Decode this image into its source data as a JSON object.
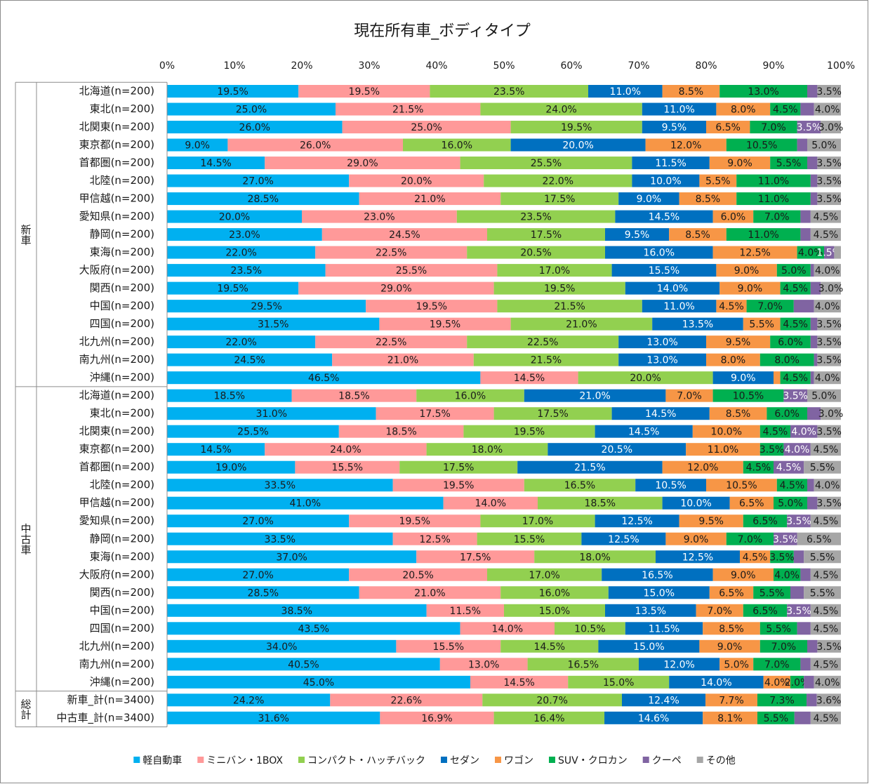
{
  "chart_data": {
    "type": "stacked_bar_horizontal",
    "title": "現在所有車_ボディタイプ",
    "groups": [
      {
        "name": "新車",
        "categories": [
          "北海道(n=200)",
          "東北(n=200)",
          "北関東(n=200)",
          "東京都(n=200)",
          "首都圏(n=200)",
          "北陸(n=200)",
          "甲信越(n=200)",
          "愛知県(n=200)",
          "静岡(n=200)",
          "東海(n=200)",
          "大阪府(n=200)",
          "関西(n=200)",
          "中国(n=200)",
          "四国(n=200)",
          "北九州(n=200)",
          "南九州(n=200)",
          "沖縄(n=200)"
        ]
      },
      {
        "name": "中古車",
        "categories": [
          "北海道(n=200)",
          "東北(n=200)",
          "北関東(n=200)",
          "東京都(n=200)",
          "首都圏(n=200)",
          "北陸(n=200)",
          "甲信越(n=200)",
          "愛知県(n=200)",
          "静岡(n=200)",
          "東海(n=200)",
          "大阪府(n=200)",
          "関西(n=200)",
          "中国(n=200)",
          "四国(n=200)",
          "北九州(n=200)",
          "南九州(n=200)",
          "沖縄(n=200)"
        ]
      },
      {
        "name": "総計",
        "categories": [
          "新車_計(n=3400)",
          "中古車_計(n=3400)"
        ]
      }
    ],
    "xlim": [
      0,
      100
    ],
    "xticks": [
      {
        "value": 0,
        "label": "0%"
      },
      {
        "value": 10,
        "label": "10%"
      },
      {
        "value": 20,
        "label": "20%"
      },
      {
        "value": 30,
        "label": "30%"
      },
      {
        "value": 40,
        "label": "40%"
      },
      {
        "value": 50,
        "label": "50%"
      },
      {
        "value": 60,
        "label": "60%"
      },
      {
        "value": 70,
        "label": "70%"
      },
      {
        "value": 80,
        "label": "80%"
      },
      {
        "value": 90,
        "label": "90%"
      },
      {
        "value": 100,
        "label": "100%"
      }
    ],
    "legend": "bottom",
    "series": [
      {
        "name": "軽自動車",
        "color": "#00b0f0",
        "label_color": "#1a1a1a",
        "values": [
          19.5,
          25.0,
          26.0,
          9.0,
          14.5,
          27.0,
          28.5,
          20.0,
          23.0,
          22.0,
          23.5,
          19.5,
          29.5,
          31.5,
          22.0,
          24.5,
          46.5,
          18.5,
          31.0,
          25.5,
          14.5,
          19.0,
          33.5,
          41.0,
          27.0,
          33.5,
          37.0,
          27.0,
          28.5,
          38.5,
          43.5,
          34.0,
          40.5,
          45.0,
          24.2,
          31.6
        ],
        "value_labels": [
          "19.5%",
          "25.0%",
          "26.0%",
          "9.0%",
          "14.5%",
          "27.0%",
          "28.5%",
          "20.0%",
          "23.0%",
          "22.0%",
          "23.5%",
          "19.5%",
          "29.5%",
          "31.5%",
          "22.0%",
          "24.5%",
          "46.5%",
          "18.5%",
          "31.0%",
          "25.5%",
          "14.5%",
          "19.0%",
          "33.5%",
          "41.0%",
          "27.0%",
          "33.5%",
          "37.0%",
          "27.0%",
          "28.5%",
          "38.5%",
          "43.5%",
          "34.0%",
          "40.5%",
          "45.0%",
          "24.2%",
          "31.6%"
        ]
      },
      {
        "name": "ミニバン・1BOX",
        "color": "#ff9999",
        "label_color": "#1a1a1a",
        "values": [
          19.5,
          21.5,
          25.0,
          26.0,
          29.0,
          20.0,
          21.0,
          23.0,
          24.5,
          22.5,
          25.5,
          29.0,
          19.5,
          19.5,
          22.5,
          21.0,
          14.5,
          18.5,
          17.5,
          18.5,
          24.0,
          15.5,
          19.5,
          14.0,
          19.5,
          12.5,
          17.5,
          20.5,
          21.0,
          11.5,
          14.0,
          15.5,
          13.0,
          14.5,
          22.6,
          16.9
        ],
        "value_labels": [
          "19.5%",
          "21.5%",
          "25.0%",
          "26.0%",
          "29.0%",
          "20.0%",
          "21.0%",
          "23.0%",
          "24.5%",
          "22.5%",
          "25.5%",
          "29.0%",
          "19.5%",
          "19.5%",
          "22.5%",
          "21.0%",
          "14.5%",
          "18.5%",
          "17.5%",
          "18.5%",
          "24.0%",
          "15.5%",
          "19.5%",
          "14.0%",
          "19.5%",
          "12.5%",
          "17.5%",
          "20.5%",
          "21.0%",
          "11.5%",
          "14.0%",
          "15.5%",
          "13.0%",
          "14.5%",
          "22.6%",
          "16.9%"
        ]
      },
      {
        "name": "コンパクト・ハッチバック",
        "color": "#92d050",
        "label_color": "#1a1a1a",
        "values": [
          23.5,
          24.0,
          19.5,
          16.0,
          25.5,
          22.0,
          17.5,
          23.5,
          17.5,
          20.5,
          17.0,
          19.5,
          21.5,
          21.0,
          22.5,
          21.5,
          20.0,
          16.0,
          17.5,
          19.5,
          18.0,
          17.5,
          16.5,
          18.5,
          17.0,
          15.5,
          18.0,
          17.0,
          16.0,
          15.0,
          10.5,
          14.5,
          16.5,
          15.0,
          20.7,
          16.4
        ],
        "value_labels": [
          "23.5%",
          "24.0%",
          "19.5%",
          "16.0%",
          "25.5%",
          "22.0%",
          "17.5%",
          "23.5%",
          "17.5%",
          "20.5%",
          "17.0%",
          "19.5%",
          "21.5%",
          "21.0%",
          "22.5%",
          "21.5%",
          "20.0%",
          "16.0%",
          "17.5%",
          "19.5%",
          "18.0%",
          "17.5%",
          "16.5%",
          "18.5%",
          "17.0%",
          "15.5%",
          "18.0%",
          "17.0%",
          "16.0%",
          "15.0%",
          "10.5%",
          "14.5%",
          "16.5%",
          "15.0%",
          "20.7%",
          "16.4%"
        ]
      },
      {
        "name": "セダン",
        "color": "#0070c0",
        "label_color": "#ffffff",
        "values": [
          11.0,
          11.0,
          9.5,
          20.0,
          11.5,
          10.0,
          9.0,
          14.5,
          9.5,
          16.0,
          15.5,
          14.0,
          11.0,
          13.5,
          13.0,
          13.0,
          9.0,
          21.0,
          14.5,
          14.5,
          20.5,
          21.5,
          10.5,
          10.0,
          12.5,
          12.5,
          12.5,
          16.5,
          15.0,
          13.5,
          11.5,
          15.0,
          12.0,
          14.0,
          12.4,
          14.6
        ],
        "value_labels": [
          "11.0%",
          "11.0%",
          "9.5%",
          "20.0%",
          "11.5%",
          "10.0%",
          "9.0%",
          "14.5%",
          "9.5%",
          "16.0%",
          "15.5%",
          "14.0%",
          "11.0%",
          "13.5%",
          "13.0%",
          "13.0%",
          "9.0%",
          "21.0%",
          "14.5%",
          "14.5%",
          "20.5%",
          "21.5%",
          "10.5%",
          "10.0%",
          "12.5%",
          "12.5%",
          "12.5%",
          "16.5%",
          "15.0%",
          "13.5%",
          "11.5%",
          "15.0%",
          "12.0%",
          "14.0%",
          "12.4%",
          "14.6%"
        ]
      },
      {
        "name": "ワゴン",
        "color": "#f79646",
        "label_color": "#1a1a1a",
        "values": [
          8.5,
          8.0,
          6.5,
          12.0,
          9.0,
          5.5,
          8.5,
          6.0,
          8.5,
          12.5,
          9.0,
          9.0,
          4.5,
          5.5,
          9.5,
          8.0,
          1.0,
          7.0,
          8.5,
          10.0,
          11.0,
          12.0,
          10.5,
          6.5,
          9.5,
          9.0,
          4.5,
          9.0,
          6.5,
          7.0,
          8.5,
          9.0,
          5.0,
          4.0,
          7.7,
          8.1
        ],
        "value_labels": [
          "8.5%",
          "8.0%",
          "6.5%",
          "12.0%",
          "9.0%",
          "5.5%",
          "8.5%",
          "6.0%",
          "8.5%",
          "12.5%",
          "9.0%",
          "9.0%",
          "4.5%",
          "5.5%",
          "9.5%",
          "8.0%",
          null,
          "7.0%",
          "8.5%",
          "10.0%",
          "11.0%",
          "12.0%",
          "10.5%",
          "6.5%",
          "9.5%",
          "9.0%",
          "4.5%",
          "9.0%",
          "6.5%",
          "7.0%",
          "8.5%",
          "9.0%",
          "5.0%",
          "4.0%",
          "7.7%",
          "8.1%"
        ]
      },
      {
        "name": "SUV・クロカン",
        "color": "#00b050",
        "label_color": "#1a1a1a",
        "values": [
          13.0,
          4.5,
          7.0,
          10.5,
          5.5,
          11.0,
          11.0,
          7.0,
          11.0,
          4.0,
          5.0,
          4.5,
          7.0,
          4.5,
          6.0,
          8.0,
          4.5,
          10.5,
          6.0,
          4.5,
          3.5,
          4.5,
          4.5,
          5.0,
          6.5,
          7.0,
          3.5,
          4.0,
          5.5,
          6.5,
          5.5,
          7.0,
          7.0,
          2.0,
          7.3,
          5.5
        ],
        "value_labels": [
          "13.0%",
          "4.5%",
          "7.0%",
          "10.5%",
          "5.5%",
          "11.0%",
          "11.0%",
          "7.0%",
          "11.0%",
          "4.0%",
          "5.0%",
          "4.5%",
          "7.0%",
          "4.5%",
          "6.0%",
          "8.0%",
          "4.5%",
          "10.5%",
          "6.0%",
          "4.5%",
          "3.5%",
          "4.5%",
          "4.5%",
          "5.0%",
          "6.5%",
          "7.0%",
          "3.5%",
          "4.0%",
          "5.5%",
          "6.5%",
          "5.5%",
          "7.0%",
          "7.0%",
          "2.0%",
          "7.3%",
          "5.5%"
        ]
      },
      {
        "name": "クーペ",
        "color": "#8064a2",
        "label_color": "#ffffff",
        "values": [
          1.5,
          2.0,
          3.5,
          1.5,
          1.5,
          1.0,
          1.0,
          1.5,
          1.5,
          1.5,
          0.5,
          1.5,
          3.0,
          1.0,
          1.0,
          0.5,
          0.5,
          3.5,
          2.0,
          4.0,
          4.0,
          4.5,
          1.0,
          1.5,
          3.5,
          3.5,
          1.5,
          1.5,
          2.0,
          3.5,
          2.0,
          1.5,
          1.5,
          1.5,
          1.5,
          2.4
        ],
        "value_labels": [
          null,
          null,
          "3.5%",
          null,
          null,
          null,
          null,
          null,
          null,
          "1.5%",
          null,
          null,
          null,
          null,
          null,
          null,
          null,
          "3.5%",
          null,
          "4.0%",
          "4.0%",
          "4.5%",
          null,
          null,
          "3.5%",
          "3.5%",
          null,
          null,
          null,
          "3.5%",
          null,
          null,
          null,
          null,
          null,
          null
        ]
      },
      {
        "name": "その他",
        "color": "#a6a6a6",
        "label_color": "#1a1a1a",
        "values": [
          3.5,
          4.0,
          3.0,
          5.0,
          3.5,
          3.5,
          3.5,
          4.5,
          4.5,
          1.0,
          4.0,
          3.0,
          4.0,
          3.5,
          3.5,
          3.5,
          4.0,
          5.0,
          3.0,
          3.5,
          4.5,
          5.5,
          4.0,
          3.5,
          4.5,
          6.5,
          5.5,
          4.5,
          5.5,
          4.5,
          4.5,
          3.5,
          4.5,
          4.0,
          3.6,
          4.5
        ],
        "value_labels": [
          "3.5%",
          "4.0%",
          "3.0%",
          "5.0%",
          "3.5%",
          "3.5%",
          "3.5%",
          "4.5%",
          "4.5%",
          null,
          "4.0%",
          "3.0%",
          "4.0%",
          "3.5%",
          "3.5%",
          "3.5%",
          "4.0%",
          "5.0%",
          "3.0%",
          "3.5%",
          "4.5%",
          "5.5%",
          "4.0%",
          "3.5%",
          "4.5%",
          "6.5%",
          "5.5%",
          "4.5%",
          "5.5%",
          "4.5%",
          "4.5%",
          "3.5%",
          "4.5%",
          "4.0%",
          "3.6%",
          "4.5%"
        ]
      }
    ]
  }
}
